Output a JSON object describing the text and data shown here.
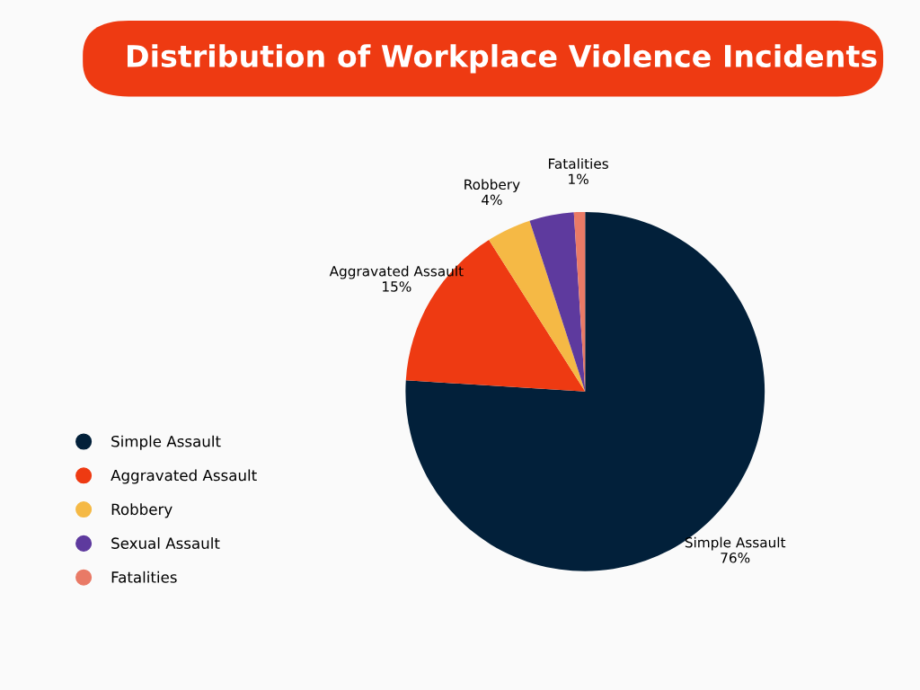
{
  "chart_data": {
    "type": "pie",
    "title": "Distribution of Workplace Violence Incidents",
    "categories": [
      "Simple Assault",
      "Aggravated Assault",
      "Robbery",
      "Sexual Assault",
      "Fatalities"
    ],
    "values": [
      76,
      15,
      4,
      4,
      1
    ],
    "value_labels": [
      "76%",
      "15%",
      "4%",
      null,
      "1%"
    ],
    "colors": [
      "#02203a",
      "#ee3a12",
      "#f5b945",
      "#5e3a9e",
      "#e97a66"
    ],
    "legend": "left"
  }
}
